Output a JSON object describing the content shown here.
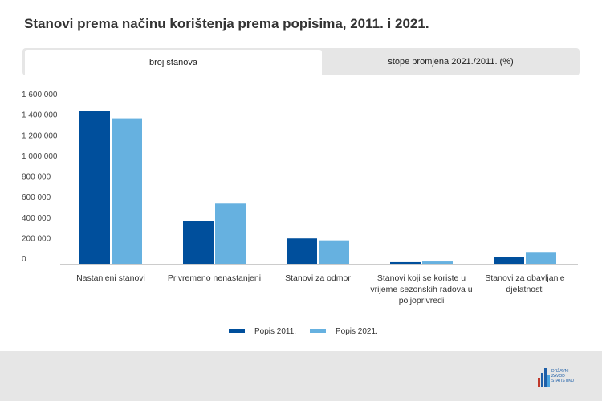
{
  "title": "Stanovi prema načinu korištenja prema popisima, 2011. i 2021.",
  "tabs": [
    {
      "label": "broj stanova"
    },
    {
      "label": "stope promjena 2021./2011. (%)"
    }
  ],
  "chart_data": {
    "type": "bar",
    "title": "Stanovi prema načinu korištenja prema popisima, 2011. i 2021.",
    "xlabel": "",
    "ylabel": "",
    "ylim": [
      0,
      1600000
    ],
    "yticks": [
      0,
      200000,
      400000,
      600000,
      800000,
      1000000,
      1200000,
      1400000,
      1600000
    ],
    "ytick_labels": [
      "0",
      "200 000",
      "400 000",
      "600 000",
      "800 000",
      "1 000 000",
      "1 200 000",
      "1 400 000",
      "1 600 000"
    ],
    "categories": [
      [
        "Nastanjeni stanovi"
      ],
      [
        "Privremeno nenastanjeni"
      ],
      [
        "Stanovi za odmor"
      ],
      [
        "Stanovi koji se koriste u",
        "vrijeme sezonskih radova u",
        "poljoprivredi"
      ],
      [
        "Stanovi za obavljanje",
        "djelatnosti"
      ]
    ],
    "series": [
      {
        "name": "Popis 2011.",
        "color": "#004f9c",
        "values": [
          1488000,
          414000,
          248000,
          16000,
          70000
        ]
      },
      {
        "name": "Popis 2021.",
        "color": "#66b1e0",
        "values": [
          1416000,
          591000,
          229000,
          23000,
          115000
        ]
      }
    ],
    "legend": "bottom",
    "grid": false
  },
  "logo_text": "DRŽAVNI ZAVOD ZA STATISTIKU"
}
